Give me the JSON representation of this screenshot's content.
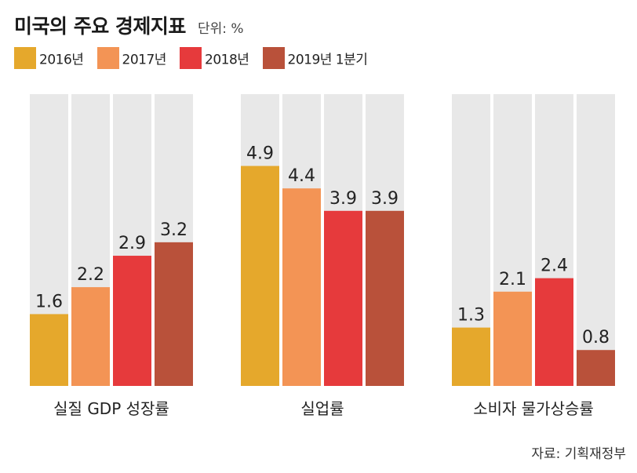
{
  "header": {
    "title": "미국의 주요 경제지표",
    "unit": "단위: %"
  },
  "legend": [
    {
      "label": "2016년",
      "color": "#e5a82c"
    },
    {
      "label": "2017년",
      "color": "#f39455"
    },
    {
      "label": "2018년",
      "color": "#e63a3c"
    },
    {
      "label": "2019년 1분기",
      "color": "#b9513a"
    }
  ],
  "background_bar_color": "#e8e8e8",
  "source": "자료: 기획재정부",
  "chart_data": {
    "type": "bar",
    "title": "미국의 주요 경제지표",
    "ylabel": "단위: %",
    "ylim": [
      0,
      6.5
    ],
    "categories": [
      "실질 GDP 성장률",
      "실업률",
      "소비자 물가상승률"
    ],
    "series": [
      {
        "name": "2016년",
        "values": [
          1.6,
          4.9,
          1.3
        ]
      },
      {
        "name": "2017년",
        "values": [
          2.2,
          4.4,
          2.1
        ]
      },
      {
        "name": "2018년",
        "values": [
          2.9,
          3.9,
          2.4
        ]
      },
      {
        "name": "2019년 1분기",
        "values": [
          3.2,
          3.9,
          0.8
        ]
      }
    ],
    "value_labels": [
      [
        "1.6",
        "2.2",
        "2.9",
        "3.2"
      ],
      [
        "4.9",
        "4.4",
        "3.9",
        "3.9"
      ],
      [
        "1.3",
        "2.1",
        "2.4",
        "0.8"
      ]
    ]
  }
}
